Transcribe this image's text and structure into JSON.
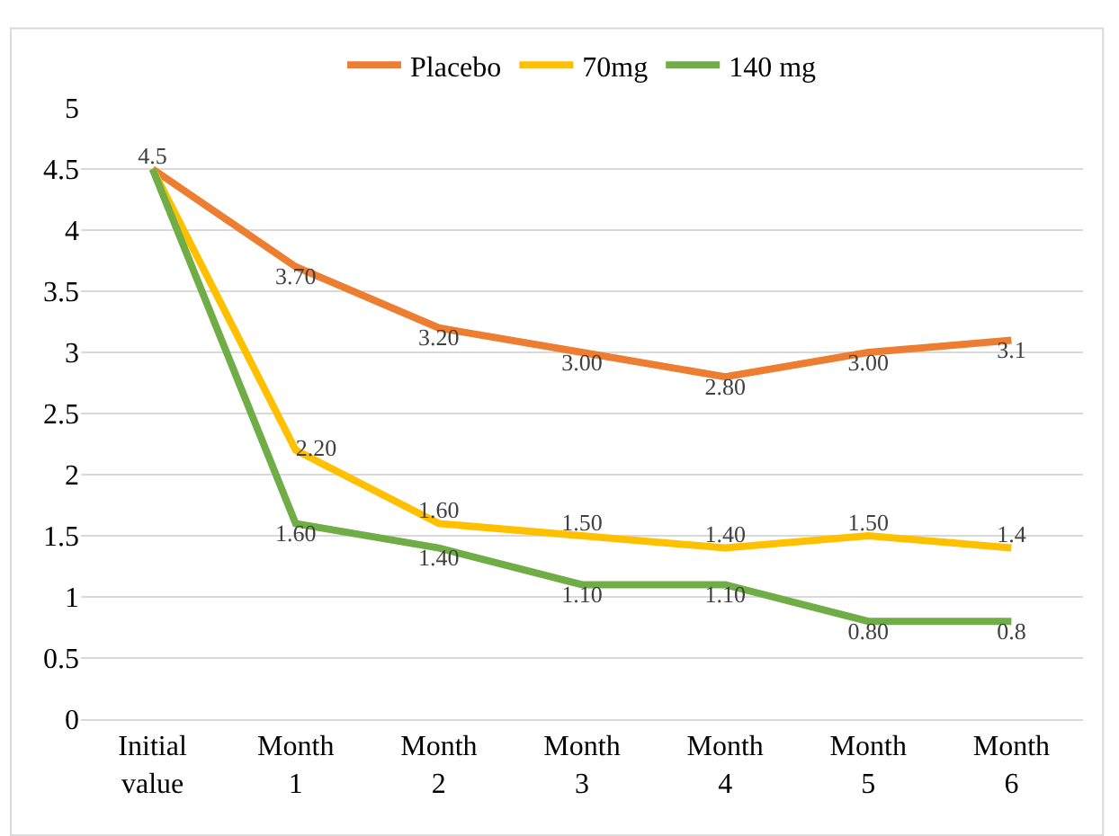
{
  "chart_data": {
    "type": "line",
    "categories": [
      "Initial value",
      "Month 1",
      "Month 2",
      "Month 3",
      "Month 4",
      "Month 5",
      "Month 6"
    ],
    "series": [
      {
        "name": "Placebo",
        "color": "#ed7d31",
        "values": [
          4.5,
          3.7,
          3.2,
          3.0,
          2.8,
          3.0,
          3.1
        ],
        "value_labels": [
          "4.5",
          "3.70",
          "3.20",
          "3.00",
          "2.80",
          "3.00",
          "3.1"
        ]
      },
      {
        "name": "70mg",
        "color": "#ffc000",
        "values": [
          4.5,
          2.2,
          1.6,
          1.5,
          1.4,
          1.5,
          1.4
        ],
        "value_labels": [
          null,
          "2.20",
          "1.60",
          "1.50",
          "1.40",
          "1.50",
          "1.4"
        ]
      },
      {
        "name": "140 mg",
        "color": "#70ad47",
        "values": [
          4.5,
          1.6,
          1.4,
          1.1,
          1.1,
          0.8,
          0.8
        ],
        "value_labels": [
          null,
          "1.60",
          "1.40",
          "1.10",
          "1.10",
          "0.80",
          "0.8"
        ]
      }
    ],
    "ylim": [
      0,
      5
    ],
    "yticks": [
      0,
      0.5,
      1,
      1.5,
      2,
      2.5,
      3,
      3.5,
      4,
      4.5,
      5
    ],
    "grid": "y",
    "legend": "top",
    "marker": "none",
    "line_style": "solid"
  }
}
